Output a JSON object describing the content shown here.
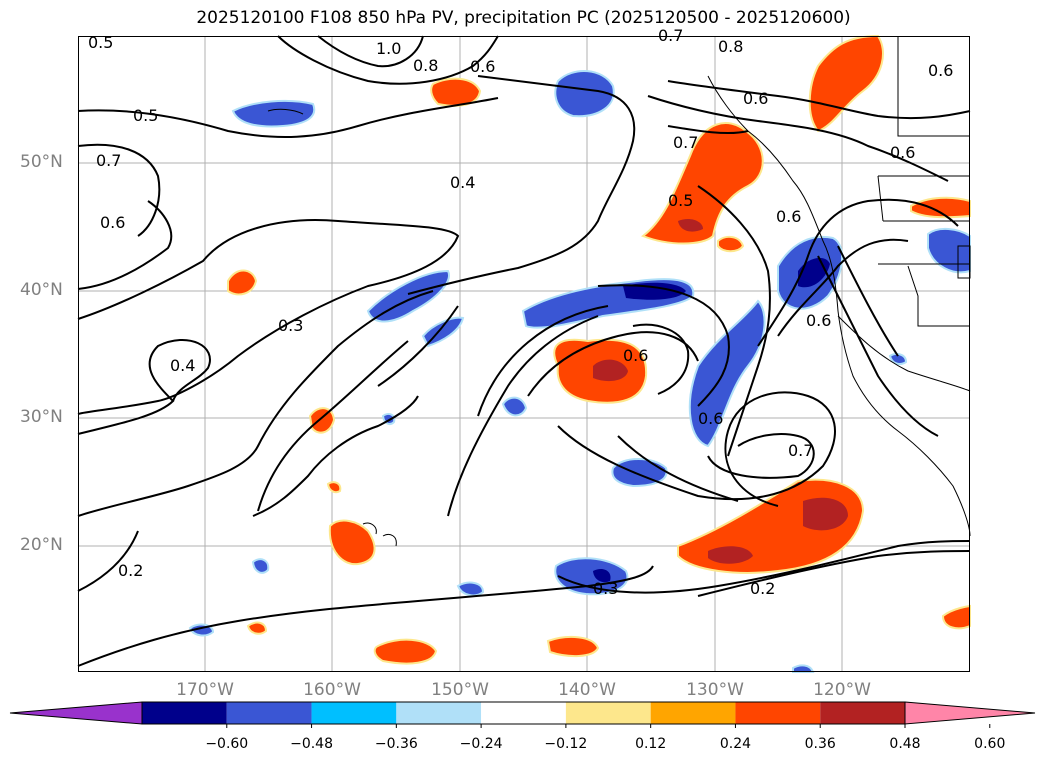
{
  "title": "2025120100 F108 850 hPa PV, precipitation PC (2025120500 - 2025120600)",
  "map": {
    "lat_labels": [
      "50°N",
      "40°N",
      "30°N",
      "20°N"
    ],
    "lon_labels": [
      "170°W",
      "160°W",
      "150°W",
      "140°W",
      "130°W",
      "120°W"
    ],
    "contour_labels": [
      {
        "text": "0.5"
      },
      {
        "text": "1.0"
      },
      {
        "text": "0.8"
      },
      {
        "text": "0.6"
      },
      {
        "text": "0.7"
      },
      {
        "text": "0.8"
      },
      {
        "text": "0.6"
      },
      {
        "text": "0.5"
      },
      {
        "text": "0.7"
      },
      {
        "text": "0.6"
      },
      {
        "text": "0.4"
      },
      {
        "text": "0.7"
      },
      {
        "text": "0.5"
      },
      {
        "text": "0.6"
      },
      {
        "text": "0.6"
      },
      {
        "text": "0.3"
      },
      {
        "text": "0.4"
      },
      {
        "text": "0.6"
      },
      {
        "text": "0.6"
      },
      {
        "text": "0.6"
      },
      {
        "text": "0.7"
      },
      {
        "text": "0.2"
      },
      {
        "text": "0.3"
      },
      {
        "text": "0.2"
      },
      {
        "text": "0.6"
      }
    ],
    "colors": {
      "neg_strong": "#8b2be2",
      "neg_1": "#00008b",
      "neg_2": "#3a56d4",
      "neg_3": "#00bfff",
      "neg_4": "#b0e0f8",
      "pos_1": "#fde78c",
      "pos_2": "#ffa500",
      "pos_3": "#ff4500",
      "pos_4": "#b22222",
      "pos_strong": "#ff85a8"
    }
  },
  "colorbar": {
    "ticks": [
      "−0.60",
      "−0.48",
      "−0.36",
      "−0.24",
      "−0.12",
      "0.12",
      "0.24",
      "0.36",
      "0.48",
      "0.60"
    ],
    "colors": [
      "#9932cc",
      "#00008b",
      "#3a56d4",
      "#00bfff",
      "#b0e0f8",
      "#ffffff",
      "#fde78c",
      "#ffa500",
      "#ff4500",
      "#b22222",
      "#ff85a8"
    ]
  }
}
